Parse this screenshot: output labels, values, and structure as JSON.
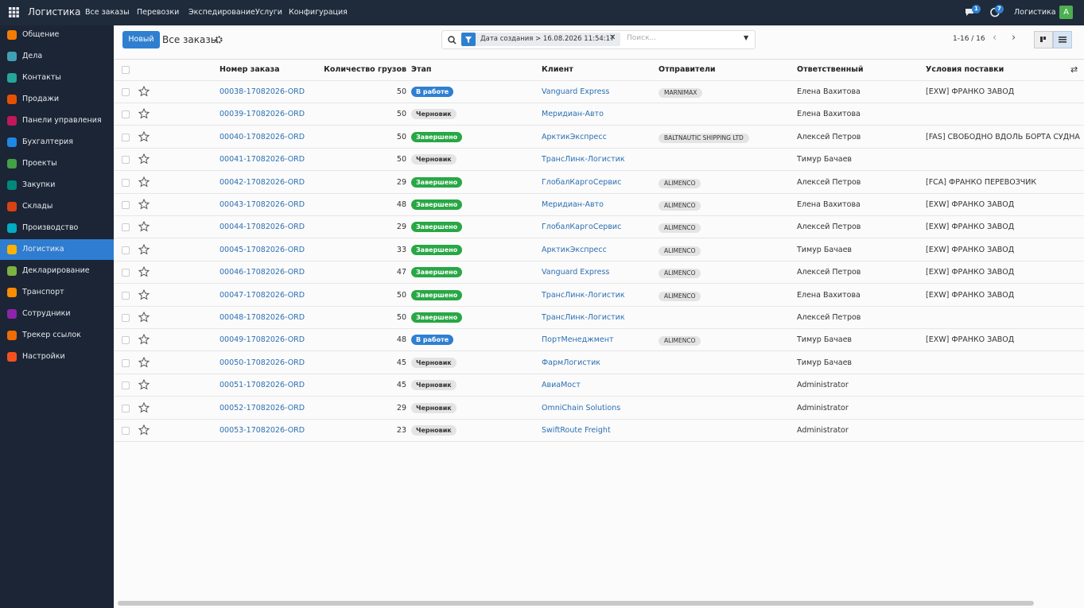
{
  "navbar": {
    "app_name": "Логистика",
    "menu": [
      "Все заказы",
      "Перевозки",
      "Экспедирование",
      "Услуги",
      "Конфигурация"
    ],
    "messages_count": 1,
    "activities_count": 7,
    "company": "Логистика",
    "avatar": "A"
  },
  "sidebar": {
    "items": [
      "Общение",
      "Дела",
      "Контакты",
      "Продажи",
      "Панели управления",
      "Бухгалтерия",
      "Проекты",
      "Закупки",
      "Склады",
      "Производство",
      "Логистика",
      "Декларирование",
      "Транспорт",
      "Сотрудники",
      "Трекер ссылок",
      "Настройки"
    ],
    "active_item": 10
  },
  "control_panel": {
    "new_button": "Новый",
    "breadcrumb": "Все заказы",
    "filter": "Дата создания > 16.08.2026 11:54:17",
    "search_placeholder": "Поиск...",
    "pager": "1-16 / 16"
  },
  "stage_colors": {
    "В работе": "#2f7fd1",
    "Черновик": "#e4e4e4",
    "Завершено": "#28a745"
  },
  "table": {
    "columns": [
      "Номер заказа",
      "Количество грузов",
      "Этап",
      "Клиент",
      "Отправители",
      "Ответственный",
      "Условия поставки"
    ],
    "rows": [
      {
        "order": "00038-17082026-ORD",
        "qty": 50,
        "stage": "В работе",
        "client": "Vanguard Express",
        "sender": "MARNIMAX",
        "responsible": "Елена Вахитова",
        "terms": "[EXW] ФРАНКО ЗАВОД"
      },
      {
        "order": "00039-17082026-ORD",
        "qty": 50,
        "stage": "Черновик",
        "client": "Меридиан-Авто",
        "responsible": "Елена Вахитова"
      },
      {
        "order": "00040-17082026-ORD",
        "qty": 50,
        "stage": "Завершено",
        "client": "АрктикЭкспресс",
        "sender": "BALTNAUTIC SHIPPING LTD",
        "responsible": "Алексей Петров",
        "terms": "[FAS] СВОБОДНО ВДОЛЬ БОРТА СУДНА"
      },
      {
        "order": "00041-17082026-ORD",
        "qty": 50,
        "stage": "Черновик",
        "client": "ТрансЛинк-Логистик",
        "responsible": "Тимур Бачаев"
      },
      {
        "order": "00042-17082026-ORD",
        "qty": 29,
        "stage": "Завершено",
        "client": "ГлобалКаргоСервис",
        "sender": "ALIMENCO",
        "responsible": "Алексей Петров",
        "terms": "[FCA] ФРАНКО ПЕРЕВОЗЧИК"
      },
      {
        "order": "00043-17082026-ORD",
        "qty": 48,
        "stage": "Завершено",
        "client": "Меридиан-Авто",
        "sender": "ALIMENCO",
        "responsible": "Елена Вахитова",
        "terms": "[EXW] ФРАНКО ЗАВОД"
      },
      {
        "order": "00044-17082026-ORD",
        "qty": 29,
        "stage": "Завершено",
        "client": "ГлобалКаргоСервис",
        "sender": "ALIMENCO",
        "responsible": "Алексей Петров",
        "terms": "[EXW] ФРАНКО ЗАВОД"
      },
      {
        "order": "00045-17082026-ORD",
        "qty": 33,
        "stage": "Завершено",
        "client": "АрктикЭкспресс",
        "sender": "ALIMENCO",
        "responsible": "Тимур Бачаев",
        "terms": "[EXW] ФРАНКО ЗАВОД"
      },
      {
        "order": "00046-17082026-ORD",
        "qty": 47,
        "stage": "Завершено",
        "client": "Vanguard Express",
        "sender": "ALIMENCO",
        "responsible": "Алексей Петров",
        "terms": "[EXW] ФРАНКО ЗАВОД"
      },
      {
        "order": "00047-17082026-ORD",
        "qty": 50,
        "stage": "Завершено",
        "client": "ТрансЛинк-Логистик",
        "sender": "ALIMENCO",
        "responsible": "Елена Вахитова",
        "terms": "[EXW] ФРАНКО ЗАВОД"
      },
      {
        "order": "00048-17082026-ORD",
        "qty": 50,
        "stage": "Завершено",
        "client": "ТрансЛинк-Логистик",
        "responsible": "Алексей Петров"
      },
      {
        "order": "00049-17082026-ORD",
        "qty": 48,
        "stage": "В работе",
        "client": "ПортМенеджмент",
        "sender": "ALIMENCO",
        "responsible": "Тимур Бачаев",
        "terms": "[EXW] ФРАНКО ЗАВОД"
      },
      {
        "order": "00050-17082026-ORD",
        "qty": 45,
        "stage": "Черновик",
        "client": "ФармЛогистик",
        "responsible": "Тимур Бачаев"
      },
      {
        "order": "00051-17082026-ORD",
        "qty": 45,
        "stage": "Черновик",
        "client": "АвиаМост",
        "responsible": "Administrator"
      },
      {
        "order": "00052-17082026-ORD",
        "qty": 29,
        "stage": "Черновик",
        "client": "OmniChain Solutions",
        "responsible": "Administrator"
      },
      {
        "order": "00053-17082026-ORD",
        "qty": 23,
        "stage": "Черновик",
        "client": "SwiftRoute Freight",
        "responsible": "Administrator"
      }
    ]
  }
}
